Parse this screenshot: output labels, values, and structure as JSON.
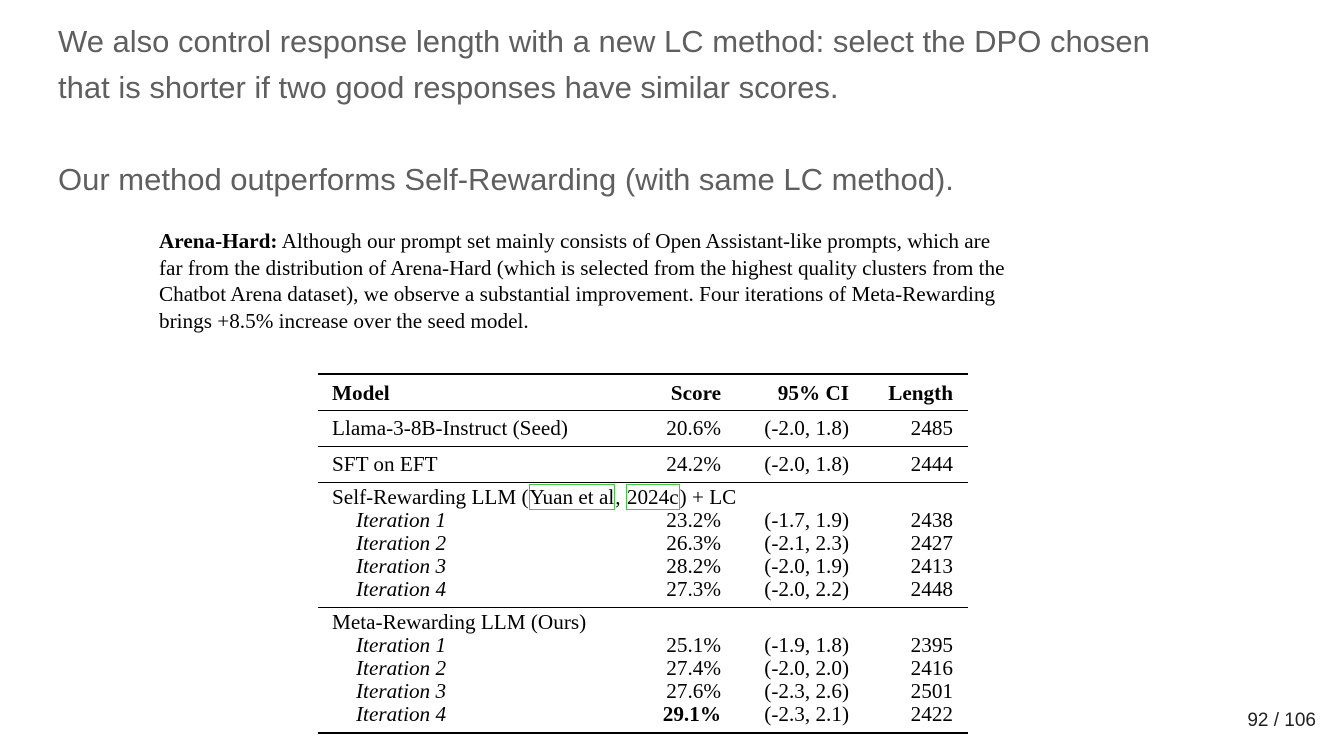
{
  "slide": {
    "line1": "We also control response length with a new LC method:  select the DPO chosen",
    "line2": "that is shorter if two good responses have similar scores.",
    "line3": "Our method outperforms Self-Rewarding (with same LC method)."
  },
  "excerpt": {
    "bold_lead": "Arena-Hard:",
    "line1": " Although our prompt set mainly consists of Open Assistant-like prompts, which are",
    "line2": "far from the distribution of Arena-Hard (which is selected from the highest quality clusters from the",
    "line3": "Chatbot Arena dataset), we observe a substantial improvement. Four iterations of Meta-Rewarding",
    "line4": "brings +8.5% increase over the seed model."
  },
  "table": {
    "headers": [
      "Model",
      "Score",
      "95% CI",
      "Length"
    ],
    "rows": [
      {
        "model": "Llama-3-8B-Instruct (Seed)",
        "score": "20.6%",
        "ci": "(-2.0, 1.8)",
        "length": "2485"
      },
      {
        "model": "SFT on EFT",
        "score": "24.2%",
        "ci": "(-2.0, 1.8)",
        "length": "2444"
      }
    ],
    "self_rewarding": {
      "prefix": "Self-Rewarding LLM (",
      "cite_author": "Yuan et al",
      "comma": ", ",
      "cite_year": "2024c",
      "suffix": ") + LC",
      "iterations": [
        {
          "model": "Iteration 1",
          "score": "23.2%",
          "ci": "(-1.7, 1.9)",
          "length": "2438"
        },
        {
          "model": "Iteration 2",
          "score": "26.3%",
          "ci": "(-2.1, 2.3)",
          "length": "2427"
        },
        {
          "model": "Iteration 3",
          "score": "28.2%",
          "ci": "(-2.0, 1.9)",
          "length": "2413"
        },
        {
          "model": "Iteration 4",
          "score": "27.3%",
          "ci": "(-2.0, 2.2)",
          "length": "2448"
        }
      ]
    },
    "meta_rewarding": {
      "title": "Meta-Rewarding LLM (Ours)",
      "iterations": [
        {
          "model": "Iteration 1",
          "score": "25.1%",
          "ci": "(-1.9, 1.8)",
          "length": "2395"
        },
        {
          "model": "Iteration 2",
          "score": "27.4%",
          "ci": "(-2.0, 2.0)",
          "length": "2416"
        },
        {
          "model": "Iteration 3",
          "score": "27.6%",
          "ci": "(-2.3, 2.6)",
          "length": "2501"
        },
        {
          "model": "Iteration 4",
          "score": "29.1%",
          "ci": "(-2.3, 2.1)",
          "length": "2422"
        }
      ]
    }
  },
  "page_number": "92 / 106"
}
